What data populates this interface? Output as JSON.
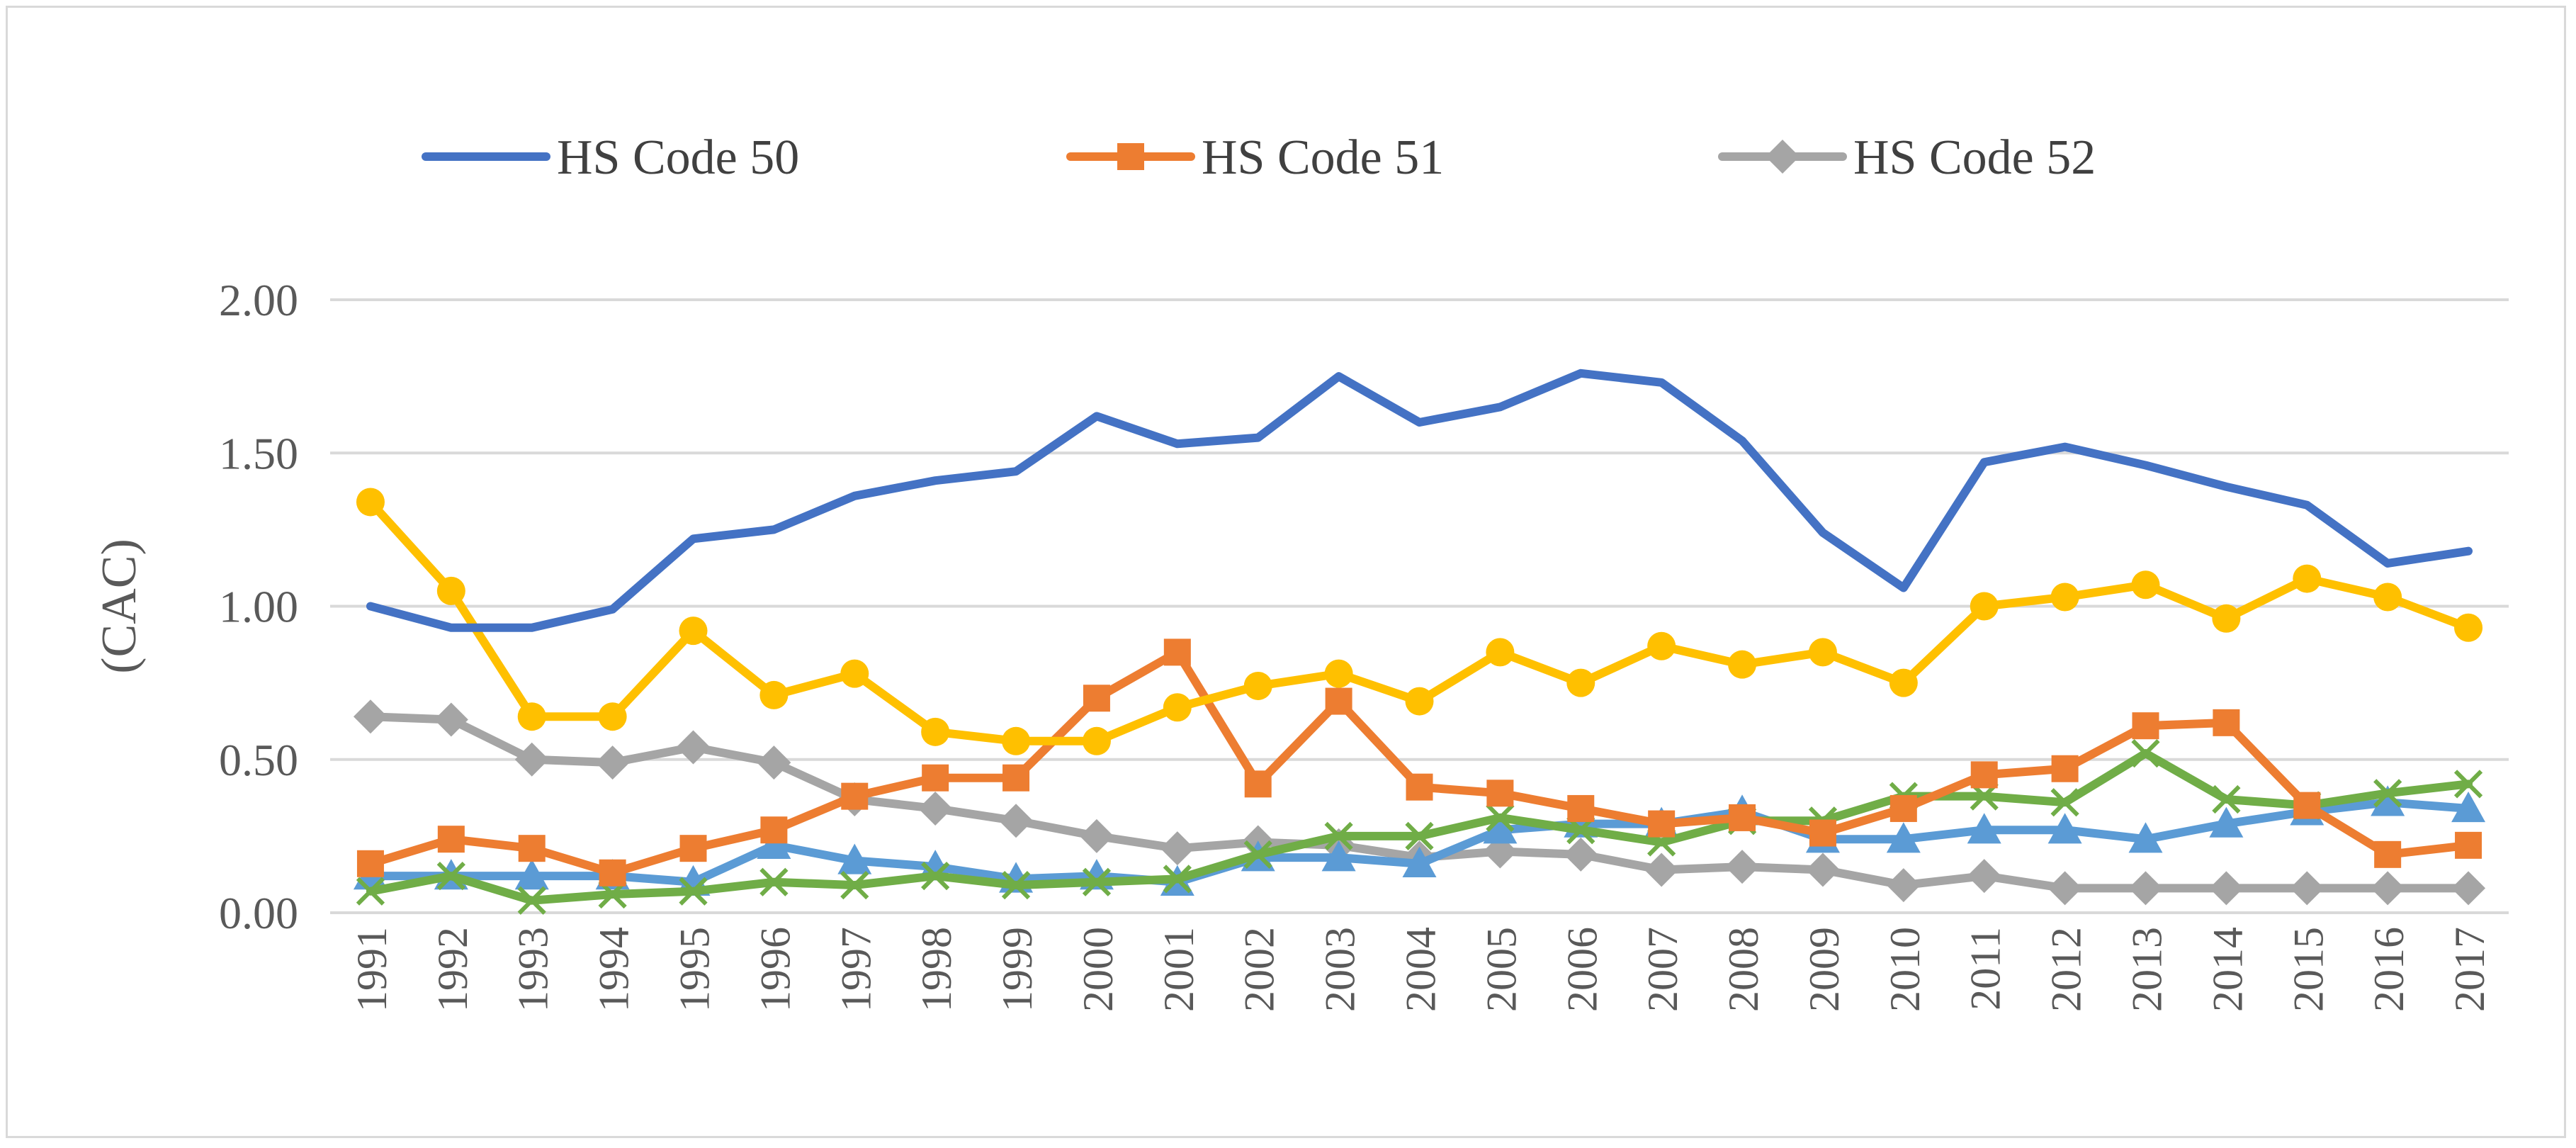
{
  "chart_data": {
    "type": "line",
    "title": "",
    "xlabel": "",
    "ylabel": "(CAC)",
    "ylim": [
      0,
      2
    ],
    "yticks": [
      "0.00",
      "0.50",
      "1.00",
      "1.50",
      "2.00"
    ],
    "grid": true,
    "legend_position": "top",
    "categories": [
      "1991",
      "1992",
      "1993",
      "1994",
      "1995",
      "1996",
      "1997",
      "1998",
      "1999",
      "2000",
      "2001",
      "2002",
      "2003",
      "2004",
      "2005",
      "2006",
      "2007",
      "2008",
      "2009",
      "2010",
      "2011",
      "2012",
      "2013",
      "2014",
      "2015",
      "2016",
      "2017"
    ],
    "series": [
      {
        "name": "HS Code 50",
        "color": "#4472c4",
        "marker": "none",
        "in_legend": true,
        "values": [
          1.0,
          0.93,
          0.93,
          0.99,
          1.22,
          1.25,
          1.36,
          1.41,
          1.44,
          1.62,
          1.53,
          1.55,
          1.75,
          1.6,
          1.65,
          1.76,
          1.73,
          1.54,
          1.24,
          1.06,
          1.47,
          1.52,
          1.46,
          1.39,
          1.33,
          1.14,
          1.18
        ]
      },
      {
        "name": "HS Code 51",
        "color": "#ed7d31",
        "marker": "square",
        "in_legend": true,
        "values": [
          0.16,
          0.24,
          0.21,
          0.13,
          0.21,
          0.27,
          0.38,
          0.44,
          0.44,
          0.7,
          0.85,
          0.42,
          0.69,
          0.41,
          0.39,
          0.34,
          0.29,
          0.31,
          0.26,
          0.34,
          0.45,
          0.47,
          0.61,
          0.62,
          0.35,
          0.19,
          0.22
        ]
      },
      {
        "name": "HS Code 52",
        "color": "#a5a5a5",
        "marker": "diamond",
        "in_legend": true,
        "values": [
          0.64,
          0.63,
          0.5,
          0.49,
          0.54,
          0.49,
          0.37,
          0.34,
          0.3,
          0.25,
          0.21,
          0.23,
          0.22,
          0.18,
          0.2,
          0.19,
          0.14,
          0.15,
          0.14,
          0.09,
          0.12,
          0.08,
          0.08,
          0.08,
          0.08,
          0.08,
          0.08
        ]
      },
      {
        "name": "",
        "color": "#ffc000",
        "marker": "circle",
        "in_legend": false,
        "values": [
          1.34,
          1.05,
          0.64,
          0.64,
          0.92,
          0.71,
          0.78,
          0.59,
          0.56,
          0.56,
          0.67,
          0.74,
          0.78,
          0.69,
          0.85,
          0.75,
          0.87,
          0.81,
          0.85,
          0.75,
          1.0,
          1.03,
          1.07,
          0.96,
          1.09,
          1.03,
          0.93
        ]
      },
      {
        "name": "",
        "color": "#5b9bd5",
        "marker": "triangle",
        "in_legend": false,
        "values": [
          0.12,
          0.12,
          0.12,
          0.12,
          0.1,
          0.22,
          0.17,
          0.15,
          0.11,
          0.12,
          0.1,
          0.18,
          0.18,
          0.16,
          0.27,
          0.29,
          0.29,
          0.33,
          0.24,
          0.24,
          0.27,
          0.27,
          0.24,
          0.29,
          0.33,
          0.36,
          0.34
        ]
      },
      {
        "name": "",
        "color": "#70ad47",
        "marker": "x",
        "in_legend": false,
        "values": [
          0.07,
          0.12,
          0.04,
          0.06,
          0.07,
          0.1,
          0.09,
          0.12,
          0.09,
          0.1,
          0.11,
          0.19,
          0.25,
          0.25,
          0.31,
          0.27,
          0.23,
          0.3,
          0.3,
          0.38,
          0.38,
          0.36,
          0.52,
          0.37,
          0.35,
          0.39,
          0.42
        ]
      }
    ]
  }
}
